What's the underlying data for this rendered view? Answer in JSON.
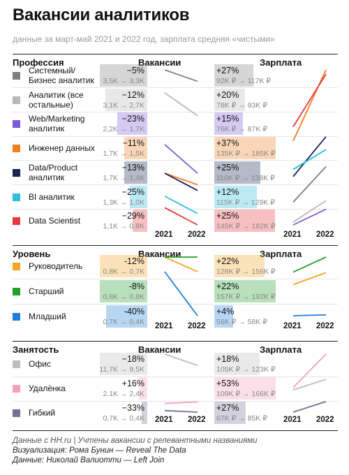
{
  "title": "Вакансии аналитиков",
  "subtitle": "данные за март-май 2021 и 2022 год, зарплата средняя «чистыми»",
  "footer": {
    "line1": "Данные с HH.ru | Учтены вакансии с релевантными названиями",
    "line2": "Визуализация: Рома Бунин — Reveal The Data",
    "line3": "Данные: Николай Валиотти — Left Join"
  },
  "chart_data": {
    "type": "table",
    "years": [
      "2021",
      "2022"
    ],
    "columns": {
      "vacancies": "Вакансии",
      "salary": "Зарплата"
    },
    "sections": [
      {
        "title": "Профессия",
        "rows": [
          {
            "label": "Системный/ Бизнес аналитик",
            "color": "#7f7f7f",
            "vac": {
              "pct": "−5%",
              "from": 3.5,
              "to": 3.3,
              "text": "3,5K → 3,3K"
            },
            "sal": {
              "pct": "+27%",
              "from": 92,
              "to": 117,
              "text": "92K ₽ → 117K ₽"
            }
          },
          {
            "label": "Аналитик (все остальные)",
            "color": "#b8b8b8",
            "vac": {
              "pct": "−12%",
              "from": 3.1,
              "to": 2.7,
              "text": "3,1K → 2,7K"
            },
            "sal": {
              "pct": "+20%",
              "from": 78,
              "to": 93,
              "text": "78K ₽ → 93K ₽"
            }
          },
          {
            "label": "Web/Marketing аналитик",
            "color": "#7b5cd6",
            "vac": {
              "pct": "−23%",
              "from": 2.2,
              "to": 1.7,
              "text": "2,2K → 1,7K"
            },
            "sal": {
              "pct": "+15%",
              "from": 76,
              "to": 87,
              "text": "76K ₽ → 87K ₽"
            }
          },
          {
            "label": "Инженер данных",
            "color": "#f07f22",
            "vac": {
              "pct": "−11%",
              "from": 1.7,
              "to": 1.5,
              "text": "1,7K → 1,5K"
            },
            "sal": {
              "pct": "+37%",
              "from": 135,
              "to": 185,
              "text": "135K ₽ → 185K ₽"
            }
          },
          {
            "label": "Data/Product аналитик",
            "color": "#1b2450",
            "vac": {
              "pct": "−13%",
              "from": 1.7,
              "to": 1.4,
              "text": "1,7K → 1,4K"
            },
            "sal": {
              "pct": "+25%",
              "from": 110,
              "to": 138,
              "text": "110K ₽ → 138K ₽"
            }
          },
          {
            "label": "BI аналитик",
            "color": "#2cbfe0",
            "vac": {
              "pct": "−25%",
              "from": 1.3,
              "to": 1.0,
              "text": "1,3K → 1,0K"
            },
            "sal": {
              "pct": "+12%",
              "from": 115,
              "to": 129,
              "text": "115K ₽ → 129K ₽"
            }
          },
          {
            "label": "Data Scientist",
            "color": "#e8383d",
            "vac": {
              "pct": "−29%",
              "from": 1.1,
              "to": 0.8,
              "text": "1,1K → 0,8K"
            },
            "sal": {
              "pct": "+25%",
              "from": 145,
              "to": 182,
              "text": "145K ₽ → 182K ₽"
            }
          }
        ]
      },
      {
        "title": "Уровень",
        "rows": [
          {
            "label": "Руководитель",
            "color": "#f5a623",
            "vac": {
              "pct": "-12%",
              "from": 0.8,
              "to": 0.7,
              "text": "0,8K → 0,7K"
            },
            "sal": {
              "pct": "+22%",
              "from": 128,
              "to": 156,
              "text": "128K ₽ → 156K ₽"
            }
          },
          {
            "label": "Старший",
            "color": "#23a02c",
            "vac": {
              "pct": "-8%",
              "from": 0.8,
              "to": 0.8,
              "text": "0,8K → 0,8K"
            },
            "sal": {
              "pct": "+22%",
              "from": 157,
              "to": 192,
              "text": "157K ₽ → 192K ₽"
            }
          },
          {
            "label": "Младший",
            "color": "#1f7ed8",
            "vac": {
              "pct": "-40%",
              "from": 0.7,
              "to": 0.4,
              "text": "0,7K → 0,4K"
            },
            "sal": {
              "pct": "+4%",
              "from": 56,
              "to": 58,
              "text": "56K ₽ → 58K ₽"
            }
          }
        ]
      },
      {
        "title": "Занятость",
        "rows": [
          {
            "label": "Офис",
            "color": "#bdbdbd",
            "vac": {
              "pct": "−18%",
              "from": 11.7,
              "to": 9.5,
              "text": "11,7K → 9,5K"
            },
            "sal": {
              "pct": "+18%",
              "from": 105,
              "to": 123,
              "text": "105K ₽ → 123K ₽"
            }
          },
          {
            "label": "Удалёнка",
            "color": "#f3a0bf",
            "vac": {
              "pct": "+16%",
              "from": 2.1,
              "to": 2.4,
              "text": "2,1K → 2,4K"
            },
            "sal": {
              "pct": "+53%",
              "from": 109,
              "to": 166,
              "text": "109K ₽ → 166K ₽"
            }
          },
          {
            "label": "Гибкий",
            "color": "#7a6f94",
            "vac": {
              "pct": "−33%",
              "from": 0.7,
              "to": 0.4,
              "text": "0,7K → 0,4K"
            },
            "sal": {
              "pct": "+27%",
              "from": 67,
              "to": 85,
              "text": "67K ₽ → 85K ₽"
            }
          }
        ]
      }
    ]
  }
}
